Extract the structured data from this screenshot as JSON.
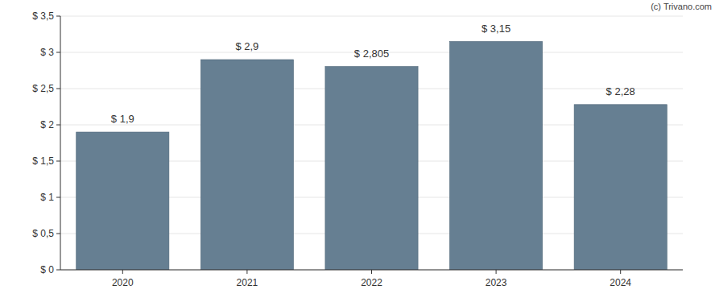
{
  "chart_data": {
    "type": "bar",
    "annotations": [
      "(c) Trivano.com"
    ],
    "categories": [
      "2020",
      "2021",
      "2022",
      "2023",
      "2024"
    ],
    "values": [
      1.9,
      2.9,
      2.805,
      3.15,
      2.28
    ],
    "value_labels": [
      "$ 1,9",
      "$ 2,9",
      "$ 2,805",
      "$ 3,15",
      "$ 2,28"
    ],
    "data_labels": true,
    "color": "#667f92",
    "ylim": [
      0,
      3.5
    ],
    "yticks": [
      {
        "value": 0,
        "label": "$ 0"
      },
      {
        "value": 0.5,
        "label": "$ 0,5"
      },
      {
        "value": 1,
        "label": "$ 1"
      },
      {
        "value": 1.5,
        "label": "$ 1,5"
      },
      {
        "value": 2,
        "label": "$ 2"
      },
      {
        "value": 2.5,
        "label": "$ 2,5"
      },
      {
        "value": 3,
        "label": "$ 3"
      },
      {
        "value": 3.5,
        "label": "$ 3,5"
      }
    ],
    "grid": true
  }
}
